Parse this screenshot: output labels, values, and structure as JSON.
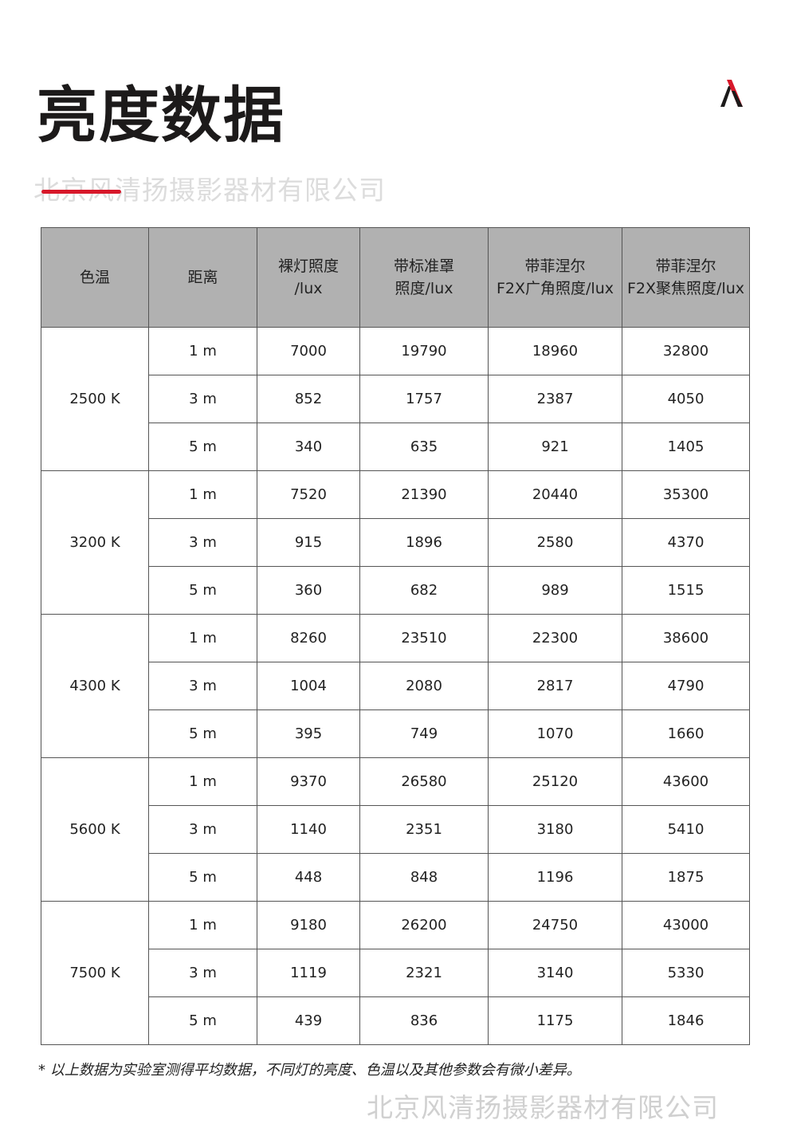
{
  "title": "亮度数据",
  "watermark": "北京风清扬摄影器材有限公司",
  "accent_color": "#d7182a",
  "logo_icon": "lambda-logo-icon",
  "table": {
    "headers": [
      "色温",
      "距离",
      "裸灯照度\n/lux",
      "带标准罩\n照度/lux",
      "带菲涅尔\nF2X广角照度/lux",
      "带菲涅尔\nF2X聚焦照度/lux"
    ],
    "groups": [
      {
        "temp": "2500 K",
        "rows": [
          [
            "1 m",
            "7000",
            "19790",
            "18960",
            "32800"
          ],
          [
            "3 m",
            "852",
            "1757",
            "2387",
            "4050"
          ],
          [
            "5 m",
            "340",
            "635",
            "921",
            "1405"
          ]
        ]
      },
      {
        "temp": "3200 K",
        "rows": [
          [
            "1 m",
            "7520",
            "21390",
            "20440",
            "35300"
          ],
          [
            "3 m",
            "915",
            "1896",
            "2580",
            "4370"
          ],
          [
            "5 m",
            "360",
            "682",
            "989",
            "1515"
          ]
        ]
      },
      {
        "temp": "4300 K",
        "rows": [
          [
            "1 m",
            "8260",
            "23510",
            "22300",
            "38600"
          ],
          [
            "3 m",
            "1004",
            "2080",
            "2817",
            "4790"
          ],
          [
            "5 m",
            "395",
            "749",
            "1070",
            "1660"
          ]
        ]
      },
      {
        "temp": "5600 K",
        "rows": [
          [
            "1 m",
            "9370",
            "26580",
            "25120",
            "43600"
          ],
          [
            "3 m",
            "1140",
            "2351",
            "3180",
            "5410"
          ],
          [
            "5 m",
            "448",
            "848",
            "1196",
            "1875"
          ]
        ]
      },
      {
        "temp": "7500 K",
        "rows": [
          [
            "1 m",
            "9180",
            "26200",
            "24750",
            "43000"
          ],
          [
            "3 m",
            "1119",
            "2321",
            "3140",
            "5330"
          ],
          [
            "5 m",
            "439",
            "836",
            "1175",
            "1846"
          ]
        ]
      }
    ]
  },
  "note": "* 以上数据为实验室测得平均数据，不同灯的亮度、色温以及其他参数会有微小差异。"
}
